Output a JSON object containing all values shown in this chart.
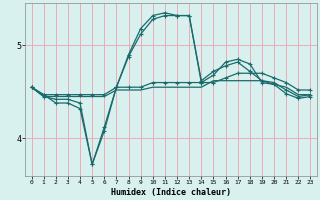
{
  "title": "",
  "xlabel": "Humidex (Indice chaleur)",
  "ylabel": "",
  "bg_color": "#d8f0ee",
  "grid_color": "#f0a0b0",
  "line_color": "#1a6b6b",
  "xlim": [
    -0.5,
    23.5
  ],
  "ylim": [
    3.6,
    5.45
  ],
  "yticks": [
    4,
    5
  ],
  "line1_x": [
    0,
    1,
    2,
    3,
    4,
    5,
    6,
    7,
    8,
    9,
    10,
    11,
    12,
    13,
    14,
    15,
    16,
    17,
    18,
    19,
    20,
    21,
    22,
    23
  ],
  "line1_y": [
    4.55,
    4.47,
    4.47,
    4.47,
    4.47,
    4.47,
    4.47,
    4.55,
    4.55,
    4.55,
    4.6,
    4.6,
    4.6,
    4.6,
    4.6,
    4.6,
    4.65,
    4.7,
    4.7,
    4.7,
    4.65,
    4.6,
    4.52,
    4.52
  ],
  "line2_x": [
    0,
    1,
    2,
    3,
    4,
    5,
    6,
    7,
    8,
    9,
    10,
    11,
    12,
    13,
    14,
    15,
    16,
    17,
    18,
    19,
    20,
    21,
    22,
    23
  ],
  "line2_y": [
    4.55,
    4.45,
    4.45,
    4.45,
    4.45,
    4.45,
    4.45,
    4.52,
    4.52,
    4.52,
    4.55,
    4.55,
    4.55,
    4.55,
    4.55,
    4.62,
    4.62,
    4.62,
    4.62,
    4.62,
    4.58,
    4.55,
    4.47,
    4.47
  ],
  "line3_x": [
    0,
    1,
    2,
    3,
    4,
    5,
    6,
    7,
    8,
    9,
    10,
    11,
    12,
    13,
    14,
    15,
    16,
    17,
    18,
    19,
    20,
    21,
    22,
    23
  ],
  "line3_y": [
    4.55,
    4.45,
    4.42,
    4.42,
    4.38,
    3.72,
    4.12,
    4.55,
    4.88,
    5.12,
    5.28,
    5.32,
    5.32,
    5.32,
    4.62,
    4.72,
    4.78,
    4.82,
    4.72,
    4.62,
    4.6,
    4.52,
    4.45,
    4.47
  ],
  "line4_x": [
    0,
    1,
    2,
    3,
    4,
    5,
    6,
    7,
    8,
    9,
    10,
    11,
    12,
    13,
    14,
    15,
    16,
    17,
    18,
    19,
    20,
    21,
    22,
    23
  ],
  "line4_y": [
    4.55,
    4.47,
    4.38,
    4.38,
    4.32,
    3.72,
    4.08,
    4.55,
    4.9,
    5.18,
    5.32,
    5.35,
    5.32,
    5.32,
    4.6,
    4.68,
    4.82,
    4.85,
    4.8,
    4.6,
    4.58,
    4.48,
    4.43,
    4.45
  ],
  "xtick_labels": [
    "0",
    "1",
    "2",
    "3",
    "4",
    "5",
    "6",
    "7",
    "8",
    "9",
    "10",
    "11",
    "12",
    "13",
    "14",
    "15",
    "16",
    "17",
    "18",
    "19",
    "20",
    "21",
    "22",
    "23"
  ]
}
